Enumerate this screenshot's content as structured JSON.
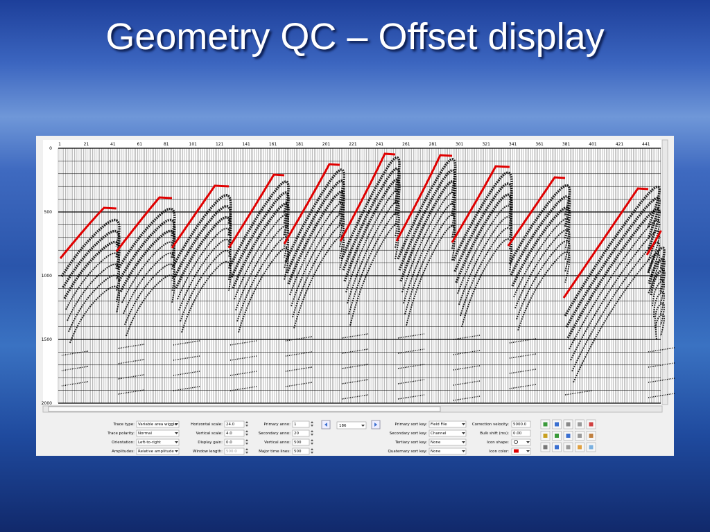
{
  "title": "Geometry QC – Offset display",
  "display": {
    "trace_labels": [
      "1",
      "21",
      "41",
      "61",
      "81",
      "101",
      "121",
      "141",
      "161",
      "181",
      "201",
      "221",
      "241",
      "261",
      "281",
      "301",
      "321",
      "341",
      "361",
      "381",
      "401",
      "421",
      "441"
    ],
    "time_labels": [
      "0",
      "500",
      "1000",
      "1500",
      "2000"
    ]
  },
  "controls": {
    "col1": [
      {
        "label": "Trace type:",
        "value": "Variable area wiggle"
      },
      {
        "label": "Trace polarity:",
        "value": "Normal"
      },
      {
        "label": "Orientation:",
        "value": "Left-to-right"
      },
      {
        "label": "Amplitudes:",
        "value": "Relative amplitude"
      }
    ],
    "col2": [
      {
        "label": "Horizontal scale:",
        "value": "24.0"
      },
      {
        "label": "Vertical scale:",
        "value": "4.0"
      },
      {
        "label": "Display gain:",
        "value": "0.0"
      },
      {
        "label": "Window length:",
        "value": "500.0"
      }
    ],
    "col3": [
      {
        "label": "Primary anno:",
        "value": "1"
      },
      {
        "label": "Secondary anno:",
        "value": "20"
      },
      {
        "label": "Vertical anno:",
        "value": "500"
      },
      {
        "label": "Major time lines:",
        "value": "500"
      }
    ],
    "col4": [
      {
        "label": "Primary sort key:",
        "value": "Field File"
      },
      {
        "label": "Secondary sort key:",
        "value": "Channel"
      },
      {
        "label": "Tertiary sort key:",
        "value": "None"
      },
      {
        "label": "Quaternary sort key:",
        "value": "None"
      }
    ],
    "col5": [
      {
        "label": "Correction velocity:",
        "value": "5000.0"
      },
      {
        "label": "Bulk shift (ms):",
        "value": "0.00"
      },
      {
        "label": "Icon shape:"
      },
      {
        "label": "Icon color:"
      }
    ]
  },
  "navigator": {
    "value": "186"
  }
}
